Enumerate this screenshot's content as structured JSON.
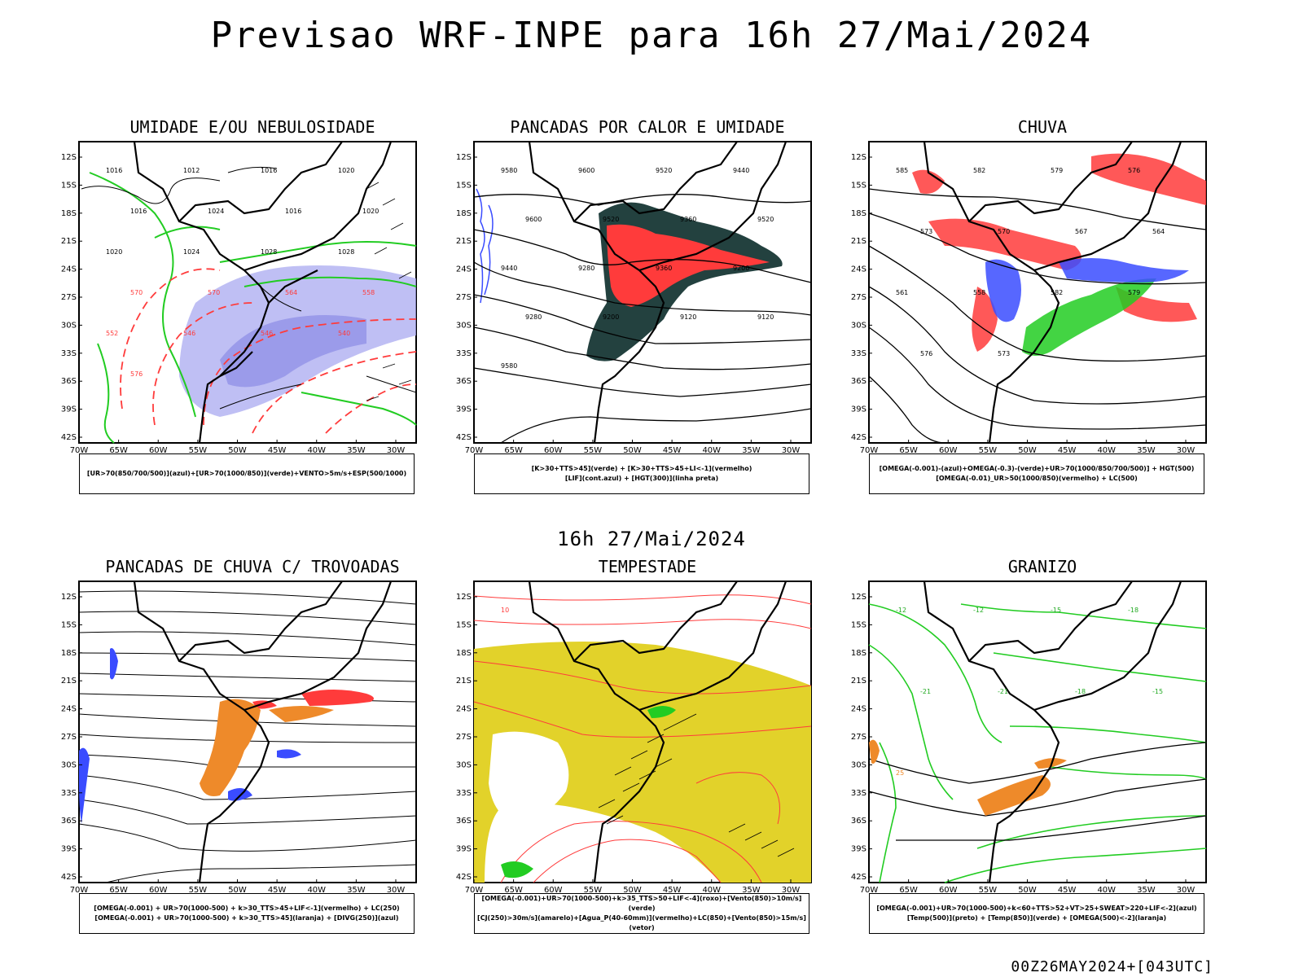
{
  "title": "Previsao WRF-INPE  para 16h 27/Mai/2024",
  "mid_title": "16h 27/Mai/2024",
  "footer": "00Z26MAY2024+[043UTC]",
  "axes": {
    "lat_labels": [
      "12S",
      "15S",
      "18S",
      "21S",
      "24S",
      "27S",
      "30S",
      "33S",
      "36S",
      "39S",
      "42S"
    ],
    "lon_labels": [
      "70W",
      "65W",
      "60W",
      "55W",
      "50W",
      "45W",
      "40W",
      "35W",
      "30W"
    ]
  },
  "panels": [
    {
      "title": "UMIDADE E/OU NEBULOSIDADE",
      "legend": [
        "[UR>70(850/700/500)](azul)+[UR>70(1000/850)](verde)+VENTO>5m/s+ESP(500/1000)"
      ],
      "contour_labels": [
        "1016",
        "1012",
        "1016",
        "1020",
        "1016",
        "1024",
        "1016",
        "1020",
        "1020",
        "1024",
        "1028",
        "1028",
        "570",
        "570",
        "564",
        "558",
        "552",
        "546",
        "546",
        "540",
        "576"
      ]
    },
    {
      "title": "PANCADAS POR CALOR E UMIDADE",
      "legend": [
        "[K>30+TTS>45](verde) + [K>30+TTS>45+LI<-1](vermelho)",
        "[LIF](cont.azul) + [HGT(300)](linha preta)"
      ],
      "contour_labels": [
        "9580",
        "9600",
        "9520",
        "9440",
        "9600",
        "9520",
        "9360",
        "9520",
        "9440",
        "9280",
        "9360",
        "9200",
        "9280",
        "9200",
        "9120",
        "9120",
        "9580"
      ]
    },
    {
      "title": "CHUVA",
      "legend": [
        "[OMEGA(-0.001)-(azul)+OMEGA(-0.3)-(verde)+UR>70(1000/850/700/500)] + HGT(500)",
        "[OMEGA(-0.01)_UR>50(1000/850)(vermelho) + LC(500)"
      ],
      "contour_labels": [
        "585",
        "582",
        "579",
        "576",
        "573",
        "570",
        "567",
        "564",
        "561",
        "558",
        "582",
        "579",
        "576",
        "573"
      ]
    },
    {
      "title": "PANCADAS DE CHUVA C/ TROVOADAS",
      "legend": [
        "[OMEGA(-0.001) + UR>70(1000-500) + k>30_TTS>45+LIF<-1](vermelho) + LC(250)",
        "[OMEGA(-0.001) + UR>70(1000-500) + k>30_TTS>45](laranja) + [DIVG(250)](azul)"
      ],
      "contour_labels": []
    },
    {
      "title": "TEMPESTADE",
      "legend": [
        "[OMEGA(-0.001)+UR>70(1000-500)+k>35_TTS>50+LIF<-4](roxo)+[Vento(850)>10m/s](verde)",
        "[CJ(250)>30m/s](amarelo)+[Agua_P(40-60mm)](vermelho)+LC(850)+[Vento(850)>15m/s](vetor)"
      ],
      "contour_labels": [
        "10"
      ]
    },
    {
      "title": "GRANIZO",
      "legend": [
        "[OMEGA(-0.001)+UR>70(1000-500)+k<60+TTS>52+VT>25+SWEAT>220+LIF<-2](azul)",
        "[Temp(500)](preto) + [Temp(850)](verde) + [OMEGA(500)<-2](laranja)"
      ],
      "contour_labels": [
        "-12",
        "-12",
        "-15",
        "-18",
        "-21",
        "-21",
        "-18",
        "-15",
        "25"
      ]
    }
  ],
  "colors": {
    "blue": "#3a4cff",
    "green": "#22cc22",
    "red": "#ff3b3b",
    "orange": "#ee8a2a",
    "yellow": "#e2d22a",
    "darkteal": "#23413f",
    "lavender": "#a9a9f0"
  }
}
